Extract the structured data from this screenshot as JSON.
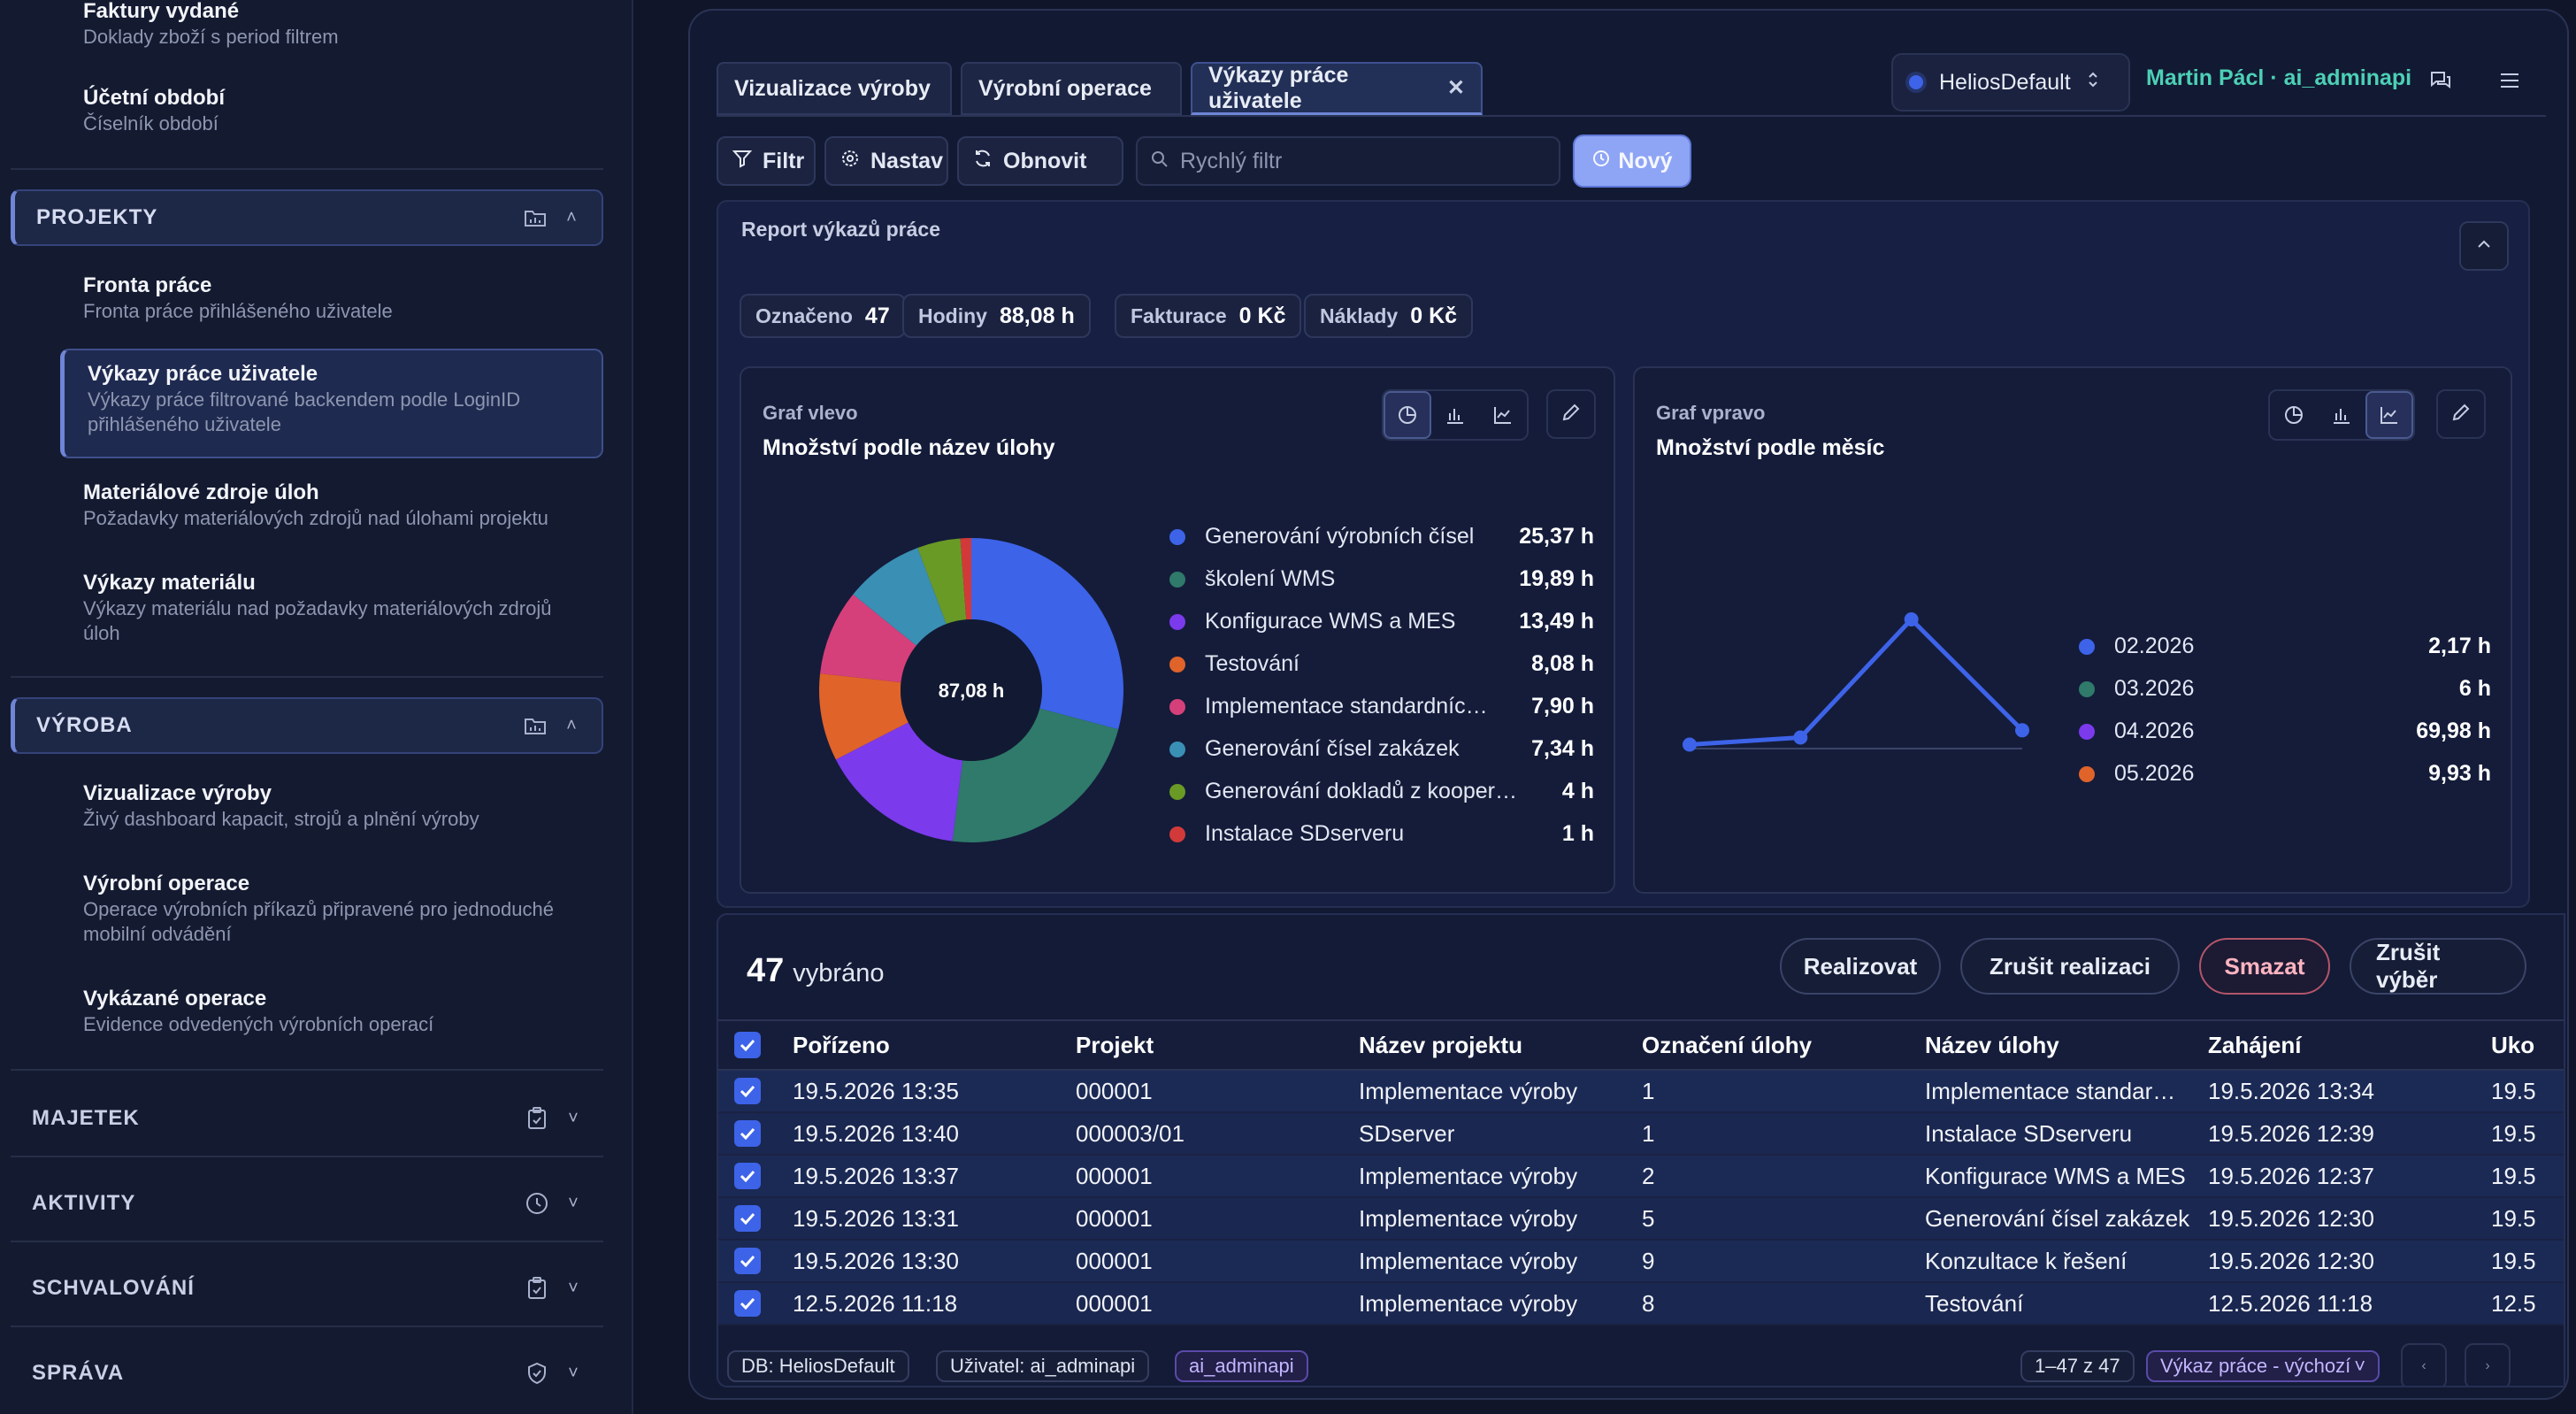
{
  "sidebar": {
    "top_items": [
      {
        "title": "Faktury vydané",
        "desc": "Doklady zboží s period filtrem"
      },
      {
        "title": "Účetní období",
        "desc": "Číselník období"
      }
    ],
    "sections": {
      "projekty": {
        "label": "PROJEKTY",
        "items": [
          {
            "title": "Fronta práce",
            "desc": "Fronta práce přihlášeného uživatele"
          },
          {
            "title": "Výkazy práce uživatele",
            "desc": "Výkazy práce filtrované backendem podle LoginID přihlášeného uživatele"
          },
          {
            "title": "Materiálové zdroje úloh",
            "desc": "Požadavky materiálových zdrojů nad úlohami projektu"
          },
          {
            "title": "Výkazy materiálu",
            "desc": "Výkazy materiálu nad požadavky materiálových zdrojů úloh"
          }
        ]
      },
      "vyroba": {
        "label": "VÝROBA",
        "items": [
          {
            "title": "Vizualizace výroby",
            "desc": "Živý dashboard kapacit, strojů a plnění výroby"
          },
          {
            "title": "Výrobní operace",
            "desc": "Operace výrobních příkazů připravené pro jednoduché mobilní odvádění"
          },
          {
            "title": "Vykázané operace",
            "desc": "Evidence odvedených výrobních operací"
          }
        ]
      },
      "collapsed": [
        {
          "label": "MAJETEK",
          "icon": "clipboard-icon"
        },
        {
          "label": "AKTIVITY",
          "icon": "clock-icon"
        },
        {
          "label": "SCHVALOVÁNÍ",
          "icon": "clipboard-check-icon"
        },
        {
          "label": "SPRÁVA",
          "icon": "shield-check-icon"
        }
      ]
    }
  },
  "tabs": [
    {
      "label": "Vizualizace výroby"
    },
    {
      "label": "Výrobní operace"
    },
    {
      "label": "Výkazy práce uživatele",
      "active": true
    }
  ],
  "header": {
    "environment": "HeliosDefault",
    "user": "Martin Pácl · ai_adminapi"
  },
  "toolbar": {
    "filter": "Filtr",
    "settings": "Nastav",
    "refresh": "Obnovit",
    "search_placeholder": "Rychlý filtr",
    "new": "Nový"
  },
  "report": {
    "title": "Report výkazů práce",
    "stats": [
      {
        "key": "Označeno",
        "value": "47"
      },
      {
        "key": "Hodiny",
        "value": "88,08 h"
      },
      {
        "key": "Fakturace",
        "value": "0 Kč"
      },
      {
        "key": "Náklady",
        "value": "0 Kč"
      }
    ],
    "left_chart": {
      "kicker": "Graf vlevo",
      "heading": "Množství podle název úlohy",
      "center_label": "87,08 h"
    },
    "right_chart": {
      "kicker": "Graf vpravo",
      "heading": "Množství podle měsíc"
    }
  },
  "chart_data": [
    {
      "type": "pie",
      "title": "Množství podle název úlohy",
      "categories": [
        "Generování výrobních čísel",
        "školení WMS",
        "Konfigurace WMS a MES",
        "Testování",
        "Implementace standardníc…",
        "Generování čísel zakázek",
        "Generování dokladů z kooper…",
        "Instalace SDserveru"
      ],
      "values": [
        25.37,
        19.89,
        13.49,
        8.08,
        7.9,
        7.34,
        4,
        1
      ],
      "value_labels": [
        "25,37 h",
        "19,89 h",
        "13,49 h",
        "8,08 h",
        "7,90 h",
        "7,34 h",
        "4 h",
        "1 h"
      ],
      "colors": [
        "#3d63e8",
        "#2f7a6a",
        "#7c3aed",
        "#e0632a",
        "#d6407a",
        "#3a8fb4",
        "#6a9a26",
        "#d23a3a"
      ]
    },
    {
      "type": "line",
      "title": "Množství podle měsíc",
      "categories": [
        "02.2026",
        "03.2026",
        "04.2026",
        "05.2026"
      ],
      "values": [
        2.17,
        6,
        69.98,
        9.93
      ],
      "value_labels": [
        "2,17 h",
        "6 h",
        "69,98 h",
        "9,93 h"
      ],
      "colors": [
        "#3d63e8",
        "#2f7a6a",
        "#7c3aed",
        "#e0632a"
      ],
      "line_color": "#3d63e8"
    }
  ],
  "table": {
    "selected_count": "47",
    "selected_label": "vybráno",
    "actions": [
      "Realizovat",
      "Zrušit realizaci",
      "Smazat",
      "Zrušit výběr"
    ],
    "columns": [
      "Pořízeno",
      "Projekt",
      "Název projektu",
      "Označení úlohy",
      "Název úlohy",
      "Zahájení",
      "Uko"
    ],
    "rows": [
      [
        "19.5.2026 13:35",
        "000001",
        "Implementace výroby",
        "1",
        "Implementace standar…",
        "19.5.2026 13:34",
        "19.5"
      ],
      [
        "19.5.2026 13:40",
        "000003/01",
        "SDserver",
        "1",
        "Instalace SDserveru",
        "19.5.2026 12:39",
        "19.5"
      ],
      [
        "19.5.2026 13:37",
        "000001",
        "Implementace výroby",
        "2",
        "Konfigurace WMS a MES",
        "19.5.2026 12:37",
        "19.5"
      ],
      [
        "19.5.2026 13:31",
        "000001",
        "Implementace výroby",
        "5",
        "Generování čísel zakázek",
        "19.5.2026 12:30",
        "19.5"
      ],
      [
        "19.5.2026 13:30",
        "000001",
        "Implementace výroby",
        "9",
        "Konzultace k řešení",
        "19.5.2026 12:30",
        "19.5"
      ],
      [
        "12.5.2026 11:18",
        "000001",
        "Implementace výroby",
        "8",
        "Testování",
        "12.5.2026 11:18",
        "12.5"
      ]
    ]
  },
  "footer": {
    "db": "DB: HeliosDefault",
    "user": "Uživatel: ai_adminapi",
    "login": "ai_adminapi",
    "range": "1–47 z 47",
    "view": "Výkaz práce - výchozí"
  }
}
